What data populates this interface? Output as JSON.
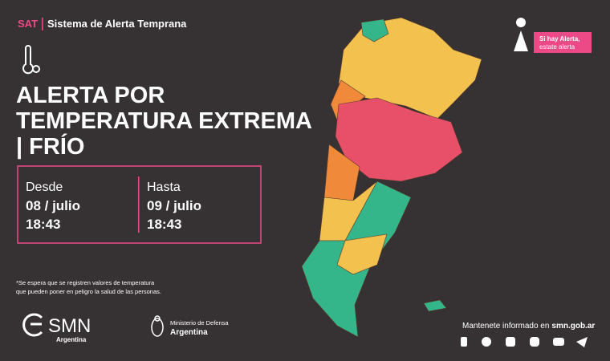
{
  "header": {
    "code": "SAT",
    "system": "Sistema de Alerta Temprana"
  },
  "badge": {
    "line1": "Si hay Alerta,",
    "line2": "estate alerta"
  },
  "title": {
    "line1": "ALERTA POR",
    "line2": "TEMPERATURA EXTREMA",
    "line3": "| FRÍO"
  },
  "period": {
    "from": {
      "label": "Desde",
      "date": "08 / julio",
      "time": "18:43"
    },
    "to": {
      "label": "Hasta",
      "date": "09 / julio",
      "time": "18:43"
    }
  },
  "note": {
    "line1": "*Se espera que se registren valores de temperatura",
    "line2": "que pueden poner en peligro la salud de las personas."
  },
  "footer": {
    "smn": {
      "name": "SMN",
      "country": "Argentina"
    },
    "ministry": {
      "name": "Ministerio de Defensa",
      "country": "Argentina"
    },
    "contact": {
      "text": "Mantenete informado en",
      "site": "smn.gob.ar"
    }
  }
}
